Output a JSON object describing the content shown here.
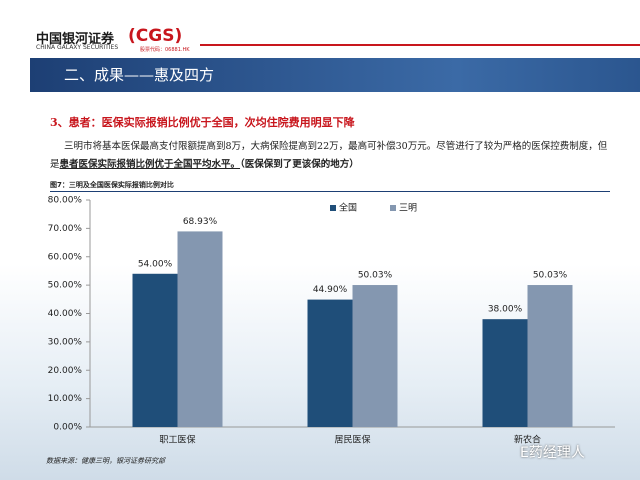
{
  "header": {
    "logo_cn": "中国银河证券",
    "logo_en": "CHINA GALAXY SECURITIES",
    "logo_brand": "(CGS)",
    "stock_code": "股票代码：06881.HK"
  },
  "section_title": "二、成果——惠及四方",
  "heading": "3、患者：医保实际报销比例优于全国，次均住院费用明显下降",
  "paragraph": {
    "text": "三明市将基本医保最高支付限额提高到8万，大病保险提高到22万，最高可补偿30万元。尽管进行了较为严格的医保控费制度，但是",
    "emphasis": "患者医保实际报销比例优于全国平均水平。",
    "note": "（医保保到了更该保的地方）"
  },
  "figure_caption": "图7：三明及全国医保实际报销比例对比",
  "source": "数据来源：健康三明，银河证券研究部",
  "watermark": "E药经理人",
  "chart_data": {
    "type": "bar",
    "categories": [
      "职工医保",
      "居民医保",
      "新农合"
    ],
    "series": [
      {
        "name": "全国",
        "color": "#1f4e79",
        "values": [
          54.0,
          44.9,
          38.0
        ],
        "value_labels": [
          "54.00%",
          "44.90%",
          "38.00%"
        ]
      },
      {
        "name": "三明",
        "color": "#8497b0",
        "values": [
          68.93,
          50.03,
          50.03
        ],
        "value_labels": [
          "68.93%",
          "50.03%",
          "50.03%"
        ]
      }
    ],
    "ylim": [
      0,
      80
    ],
    "yticks": [
      {
        "value": 0,
        "label": "0.00%"
      },
      {
        "value": 10,
        "label": "10.00%"
      },
      {
        "value": 20,
        "label": "20.00%"
      },
      {
        "value": 30,
        "label": "30.00%"
      },
      {
        "value": 40,
        "label": "40.00%"
      },
      {
        "value": 50,
        "label": "50.00%"
      },
      {
        "value": 60,
        "label": "60.00%"
      },
      {
        "value": 70,
        "label": "70.00%"
      },
      {
        "value": 80,
        "label": "80.00%"
      }
    ],
    "legend": "top-right"
  }
}
